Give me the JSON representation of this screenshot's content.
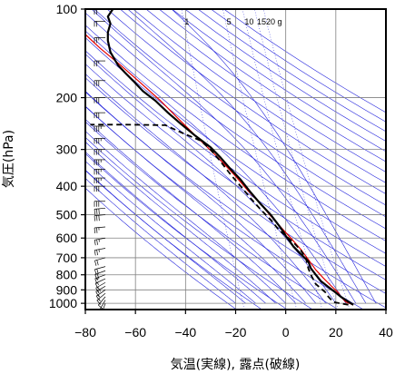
{
  "chart_data": {
    "type": "line",
    "xlabel": "気温(実線), 露点(破線)",
    "ylabel": "気圧(hPa)",
    "xlim": [
      -80,
      40
    ],
    "ylim": [
      1050,
      100
    ],
    "y_scale": "log",
    "x_ticks": [
      "−80",
      "−60",
      "−40",
      "−20",
      "0",
      "20",
      "40"
    ],
    "x_tick_values": [
      -80,
      -60,
      -40,
      -20,
      0,
      20,
      40
    ],
    "y_ticks": [
      "100",
      "200",
      "300",
      "400",
      "500",
      "600",
      "700",
      "800",
      "900",
      "1000"
    ],
    "y_tick_values": [
      100,
      200,
      300,
      400,
      500,
      600,
      700,
      800,
      900,
      1000
    ],
    "mixing_ratio_labels": [
      "1",
      "5",
      "10",
      "15",
      "20",
      "g"
    ],
    "mixing_ratio_values": [
      1,
      5,
      10,
      15,
      20
    ],
    "grid": true,
    "colors": {
      "background_lines": "#2323dc",
      "temperature": "#000000",
      "dewpoint": "#000000",
      "parcel": "#e60000",
      "barbs": "#000000"
    },
    "series": [
      {
        "name": "",
        "role": "temperature",
        "style": "solid",
        "points": [
          [
            27,
            1012
          ],
          [
            24,
            975
          ],
          [
            22,
            950
          ],
          [
            20,
            920
          ],
          [
            17,
            880
          ],
          [
            14,
            840
          ],
          [
            12,
            800
          ],
          [
            10,
            760
          ],
          [
            9,
            720
          ],
          [
            6,
            680
          ],
          [
            3,
            640
          ],
          [
            1,
            605
          ],
          [
            0,
            590
          ],
          [
            -1,
            570
          ],
          [
            -3,
            540
          ],
          [
            -6,
            500
          ],
          [
            -10,
            460
          ],
          [
            -14,
            420
          ],
          [
            -18,
            380
          ],
          [
            -22,
            350
          ],
          [
            -26,
            320
          ],
          [
            -30,
            295
          ],
          [
            -36,
            270
          ],
          [
            -42,
            245
          ],
          [
            -47,
            225
          ],
          [
            -52,
            205
          ],
          [
            -57,
            190
          ],
          [
            -61,
            175
          ],
          [
            -64,
            165
          ],
          [
            -67,
            155
          ],
          [
            -70,
            140
          ],
          [
            -71,
            128
          ],
          [
            -71,
            120
          ],
          [
            -70,
            112
          ],
          [
            -71,
            106
          ],
          [
            -69,
            100
          ]
        ]
      },
      {
        "name": "",
        "role": "dewpoint",
        "style": "dashed",
        "points": [
          [
            25,
            1012
          ],
          [
            19,
            990
          ],
          [
            17,
            950
          ],
          [
            16,
            920
          ],
          [
            12,
            860
          ],
          [
            10,
            800
          ],
          [
            9,
            760
          ],
          [
            8,
            700
          ],
          [
            6,
            660
          ],
          [
            3,
            620
          ],
          [
            0,
            590
          ],
          [
            -3,
            560
          ],
          [
            -6,
            520
          ],
          [
            -10,
            480
          ],
          [
            -14,
            440
          ],
          [
            -18,
            400
          ],
          [
            -22,
            365
          ],
          [
            -26,
            330
          ],
          [
            -30,
            300
          ],
          [
            -34,
            280
          ],
          [
            -42,
            262
          ],
          [
            -48,
            248
          ],
          [
            -64,
            247
          ],
          [
            -78,
            247
          ]
        ]
      },
      {
        "name": "",
        "role": "parcel",
        "style": "solid",
        "points": [
          [
            27,
            1012
          ],
          [
            24,
            990
          ],
          [
            22,
            950
          ],
          [
            21,
            920
          ],
          [
            18,
            870
          ],
          [
            15,
            820
          ],
          [
            12,
            770
          ],
          [
            9,
            710
          ],
          [
            6,
            655
          ],
          [
            2,
            600
          ],
          [
            -2,
            550
          ],
          [
            -6,
            505
          ],
          [
            -10,
            460
          ],
          [
            -15,
            415
          ],
          [
            -20,
            370
          ],
          [
            -27,
            320
          ],
          [
            -34,
            280
          ],
          [
            -42,
            240
          ],
          [
            -50,
            205
          ],
          [
            -58,
            178
          ],
          [
            -66,
            155
          ],
          [
            -74,
            136
          ],
          [
            -80,
            122
          ]
        ]
      }
    ],
    "wind_barbs": [
      {
        "pressure": 1000,
        "speed_kt": 5,
        "direction_deg": 200
      },
      {
        "pressure": 975,
        "speed_kt": 10,
        "direction_deg": 210
      },
      {
        "pressure": 950,
        "speed_kt": 10,
        "direction_deg": 220
      },
      {
        "pressure": 925,
        "speed_kt": 15,
        "direction_deg": 230
      },
      {
        "pressure": 900,
        "speed_kt": 15,
        "direction_deg": 235
      },
      {
        "pressure": 875,
        "speed_kt": 15,
        "direction_deg": 240
      },
      {
        "pressure": 850,
        "speed_kt": 20,
        "direction_deg": 240
      },
      {
        "pressure": 825,
        "speed_kt": 15,
        "direction_deg": 245
      },
      {
        "pressure": 800,
        "speed_kt": 15,
        "direction_deg": 250
      },
      {
        "pressure": 775,
        "speed_kt": 20,
        "direction_deg": 250
      },
      {
        "pressure": 750,
        "speed_kt": 20,
        "direction_deg": 255
      },
      {
        "pressure": 700,
        "speed_kt": 20,
        "direction_deg": 255
      },
      {
        "pressure": 650,
        "speed_kt": 25,
        "direction_deg": 260
      },
      {
        "pressure": 600,
        "speed_kt": 25,
        "direction_deg": 260
      },
      {
        "pressure": 550,
        "speed_kt": 25,
        "direction_deg": 265
      },
      {
        "pressure": 500,
        "speed_kt": 30,
        "direction_deg": 265
      },
      {
        "pressure": 475,
        "speed_kt": 30,
        "direction_deg": 265
      },
      {
        "pressure": 450,
        "speed_kt": 30,
        "direction_deg": 270
      },
      {
        "pressure": 400,
        "speed_kt": 30,
        "direction_deg": 270
      },
      {
        "pressure": 375,
        "speed_kt": 35,
        "direction_deg": 270
      },
      {
        "pressure": 350,
        "speed_kt": 35,
        "direction_deg": 270
      },
      {
        "pressure": 325,
        "speed_kt": 35,
        "direction_deg": 270
      },
      {
        "pressure": 300,
        "speed_kt": 35,
        "direction_deg": 270
      },
      {
        "pressure": 275,
        "speed_kt": 35,
        "direction_deg": 270
      },
      {
        "pressure": 250,
        "speed_kt": 35,
        "direction_deg": 270
      },
      {
        "pressure": 225,
        "speed_kt": 30,
        "direction_deg": 270
      },
      {
        "pressure": 200,
        "speed_kt": 30,
        "direction_deg": 270
      },
      {
        "pressure": 175,
        "speed_kt": 30,
        "direction_deg": 270
      },
      {
        "pressure": 150,
        "speed_kt": 25,
        "direction_deg": 270
      },
      {
        "pressure": 125,
        "speed_kt": 25,
        "direction_deg": 270
      },
      {
        "pressure": 110,
        "speed_kt": 20,
        "direction_deg": 270
      },
      {
        "pressure": 100,
        "speed_kt": 20,
        "direction_deg": 270
      }
    ]
  }
}
